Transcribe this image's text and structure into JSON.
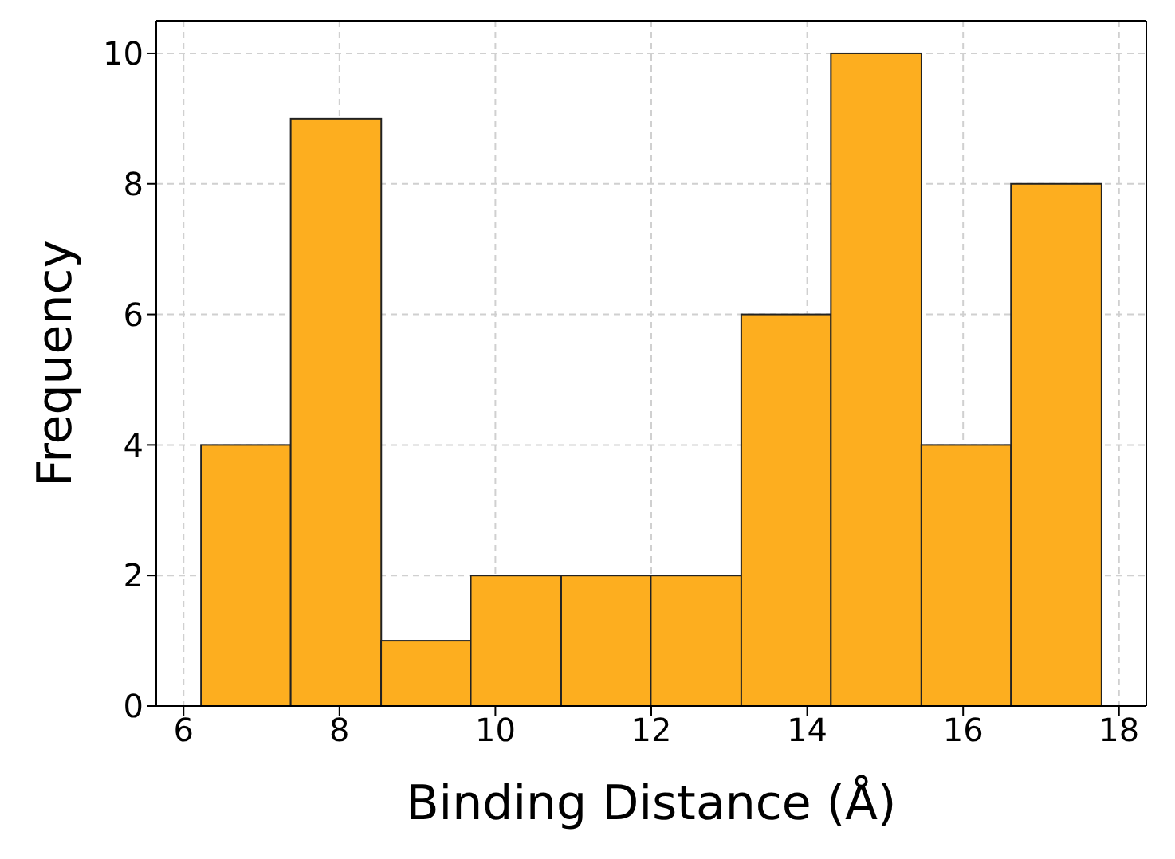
{
  "chart_data": {
    "type": "histogram",
    "xlabel": "Binding Distance (Å)",
    "ylabel": "Frequency",
    "bins": [
      6.23,
      7.38,
      8.54,
      9.69,
      10.85,
      12.0,
      13.16,
      14.31,
      15.47,
      16.62,
      17.78
    ],
    "values": [
      4,
      9,
      1,
      2,
      2,
      2,
      6,
      10,
      4,
      8
    ],
    "color": "#fdae1f",
    "xlim": [
      5.65,
      18.35
    ],
    "xticks": [
      6,
      8,
      10,
      12,
      14,
      16,
      18
    ],
    "ylim": [
      0,
      10.5
    ],
    "yticks": [
      0,
      2,
      4,
      6,
      8,
      10
    ],
    "grid": true
  }
}
